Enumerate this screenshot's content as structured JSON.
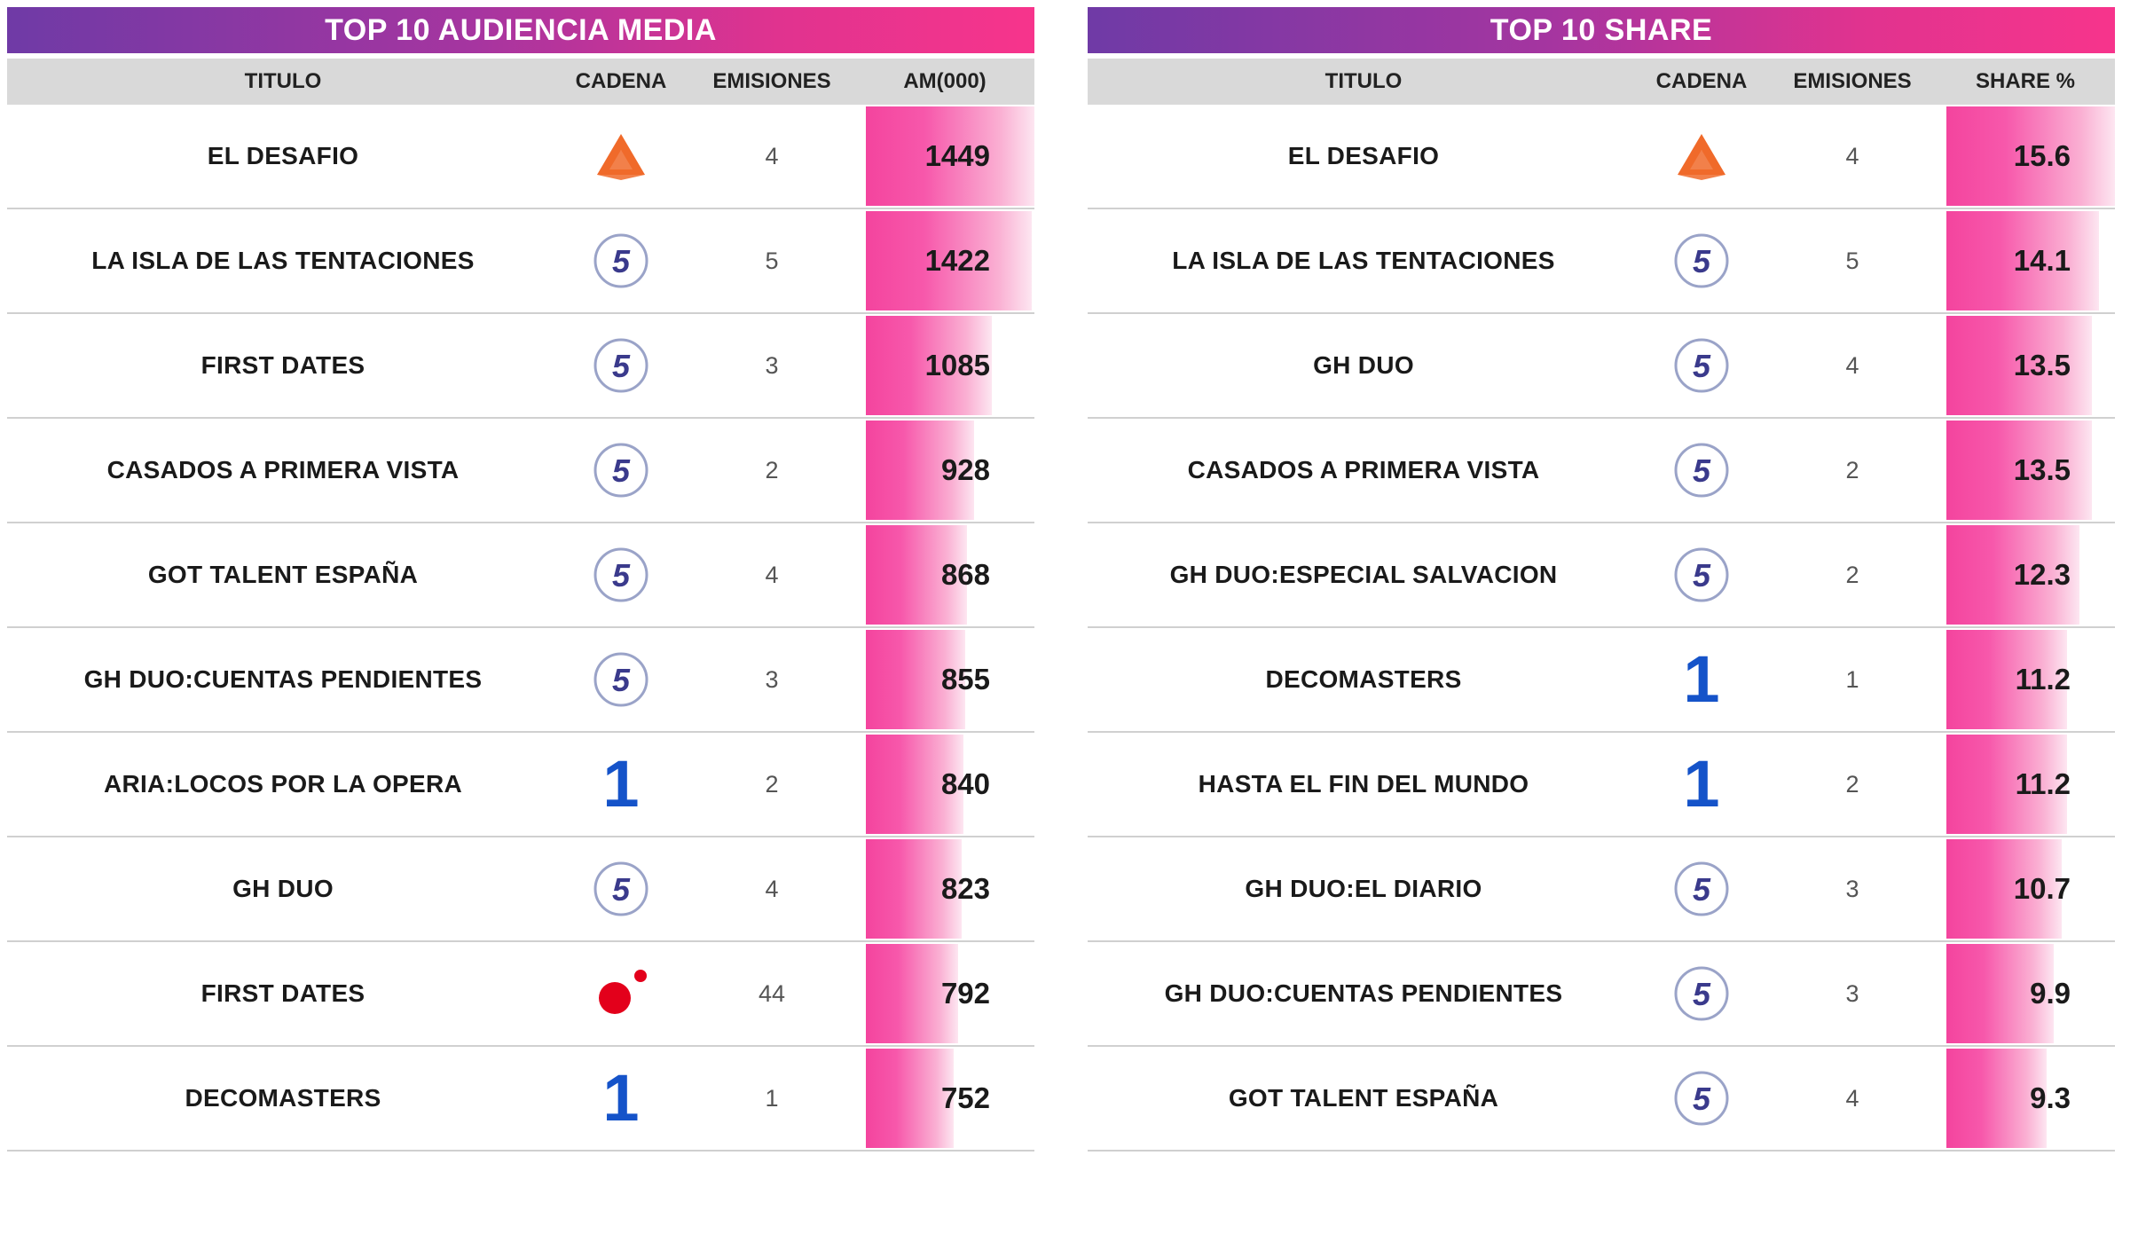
{
  "left": {
    "banner": "TOP 10 AUDIENCIA MEDIA",
    "headers": {
      "titulo": "TITULO",
      "cadena": "CADENA",
      "emisiones": "EMISIONES",
      "value": "AM(000)"
    },
    "rows": [
      {
        "titulo": "EL DESAFIO",
        "cadena": "antena3-logo-icon",
        "emisiones": "4",
        "value": "1449"
      },
      {
        "titulo": "LA ISLA DE LAS TENTACIONES",
        "cadena": "telecinco-logo-icon",
        "emisiones": "5",
        "value": "1422"
      },
      {
        "titulo": "FIRST DATES",
        "cadena": "telecinco-logo-icon",
        "emisiones": "3",
        "value": "1085"
      },
      {
        "titulo": "CASADOS A PRIMERA VISTA",
        "cadena": "telecinco-logo-icon",
        "emisiones": "2",
        "value": "928"
      },
      {
        "titulo": "GOT TALENT ESPAÑA",
        "cadena": "telecinco-logo-icon",
        "emisiones": "4",
        "value": "868"
      },
      {
        "titulo": "GH DUO:CUENTAS PENDIENTES",
        "cadena": "telecinco-logo-icon",
        "emisiones": "3",
        "value": "855"
      },
      {
        "titulo": "ARIA:LOCOS POR LA OPERA",
        "cadena": "la1-logo-icon",
        "emisiones": "2",
        "value": "840"
      },
      {
        "titulo": "GH DUO",
        "cadena": "telecinco-logo-icon",
        "emisiones": "4",
        "value": "823"
      },
      {
        "titulo": "FIRST DATES",
        "cadena": "cuatro-logo-icon",
        "emisiones": "44",
        "value": "792"
      },
      {
        "titulo": "DECOMASTERS",
        "cadena": "la1-logo-icon",
        "emisiones": "1",
        "value": "752"
      }
    ]
  },
  "right": {
    "banner": "TOP 10 SHARE",
    "headers": {
      "titulo": "TITULO",
      "cadena": "CADENA",
      "emisiones": "EMISIONES",
      "value": "SHARE %"
    },
    "rows": [
      {
        "titulo": "EL DESAFIO",
        "cadena": "antena3-logo-icon",
        "emisiones": "4",
        "value": "15.6"
      },
      {
        "titulo": "LA ISLA DE LAS TENTACIONES",
        "cadena": "telecinco-logo-icon",
        "emisiones": "5",
        "value": "14.1"
      },
      {
        "titulo": "GH DUO",
        "cadena": "telecinco-logo-icon",
        "emisiones": "4",
        "value": "13.5"
      },
      {
        "titulo": "CASADOS A PRIMERA VISTA",
        "cadena": "telecinco-logo-icon",
        "emisiones": "2",
        "value": "13.5"
      },
      {
        "titulo": "GH DUO:ESPECIAL SALVACION",
        "cadena": "telecinco-logo-icon",
        "emisiones": "2",
        "value": "12.3"
      },
      {
        "titulo": "DECOMASTERS",
        "cadena": "la1-logo-icon",
        "emisiones": "1",
        "value": "11.2"
      },
      {
        "titulo": "HASTA EL FIN DEL MUNDO",
        "cadena": "la1-logo-icon",
        "emisiones": "2",
        "value": "11.2"
      },
      {
        "titulo": "GH DUO:EL DIARIO",
        "cadena": "telecinco-logo-icon",
        "emisiones": "3",
        "value": "10.7"
      },
      {
        "titulo": "GH DUO:CUENTAS PENDIENTES",
        "cadena": "telecinco-logo-icon",
        "emisiones": "3",
        "value": "9.9"
      },
      {
        "titulo": "GOT TALENT ESPAÑA",
        "cadena": "telecinco-logo-icon",
        "emisiones": "4",
        "value": "9.3"
      }
    ]
  },
  "colors": {
    "banner_start": "#6f3aa6",
    "banner_end": "#f7348c",
    "bar": "#f4449e",
    "la1": "#1553c9",
    "antena3": "#f06a2a",
    "cuatro": "#e3001b",
    "telecinco": "#3a3a8c"
  },
  "chart_data": [
    {
      "type": "table",
      "title": "TOP 10 AUDIENCIA MEDIA",
      "columns": [
        "TITULO",
        "CADENA",
        "EMISIONES",
        "AM(000)"
      ],
      "categories": [
        "EL DESAFIO",
        "LA ISLA DE LAS TENTACIONES",
        "FIRST DATES",
        "CASADOS A PRIMERA VISTA",
        "GOT TALENT ESPAÑA",
        "GH DUO:CUENTAS PENDIENTES",
        "ARIA:LOCOS POR LA OPERA",
        "GH DUO",
        "FIRST DATES",
        "DECOMASTERS"
      ],
      "values": [
        1449,
        1422,
        1085,
        928,
        868,
        855,
        840,
        823,
        792,
        752
      ],
      "emisiones": [
        4,
        5,
        3,
        2,
        4,
        3,
        2,
        4,
        44,
        1
      ],
      "ylim": [
        0,
        1449
      ]
    },
    {
      "type": "table",
      "title": "TOP 10 SHARE",
      "columns": [
        "TITULO",
        "CADENA",
        "EMISIONES",
        "SHARE %"
      ],
      "categories": [
        "EL DESAFIO",
        "LA ISLA DE LAS TENTACIONES",
        "GH DUO",
        "CASADOS A PRIMERA VISTA",
        "GH DUO:ESPECIAL SALVACION",
        "DECOMASTERS",
        "HASTA EL FIN DEL MUNDO",
        "GH DUO:EL DIARIO",
        "GH DUO:CUENTAS PENDIENTES",
        "GOT TALENT ESPAÑA"
      ],
      "values": [
        15.6,
        14.1,
        13.5,
        13.5,
        12.3,
        11.2,
        11.2,
        10.7,
        9.9,
        9.3
      ],
      "emisiones": [
        4,
        5,
        4,
        2,
        2,
        1,
        2,
        3,
        3,
        4
      ],
      "ylim": [
        0,
        15.6
      ]
    }
  ]
}
